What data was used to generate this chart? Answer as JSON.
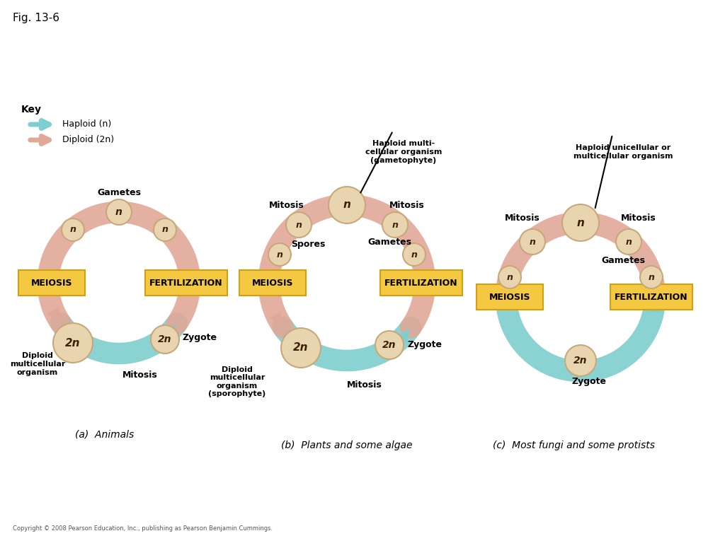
{
  "fig_label": "Fig. 13-6",
  "background_color": "#ffffff",
  "key_title": "Key",
  "key_haploid": "Haploid (n)",
  "key_diploid": "Diploid (2n)",
  "haploid_color": "#7ecece",
  "diploid_color": "#e0a898",
  "circle_fill": "#e8d5b0",
  "circle_edge": "#c8a87a",
  "box_fill": "#f5c842",
  "box_edge": "#d4a010",
  "text_color": "#000000",
  "label_a": "(a)  Animals",
  "label_b": "(b)  Plants and some algae",
  "label_c": "(c)  Most fungi and some protists",
  "copyright": "Copyright © 2008 Pearson Education, Inc., publishing as Pearson Benjamin Cummings."
}
